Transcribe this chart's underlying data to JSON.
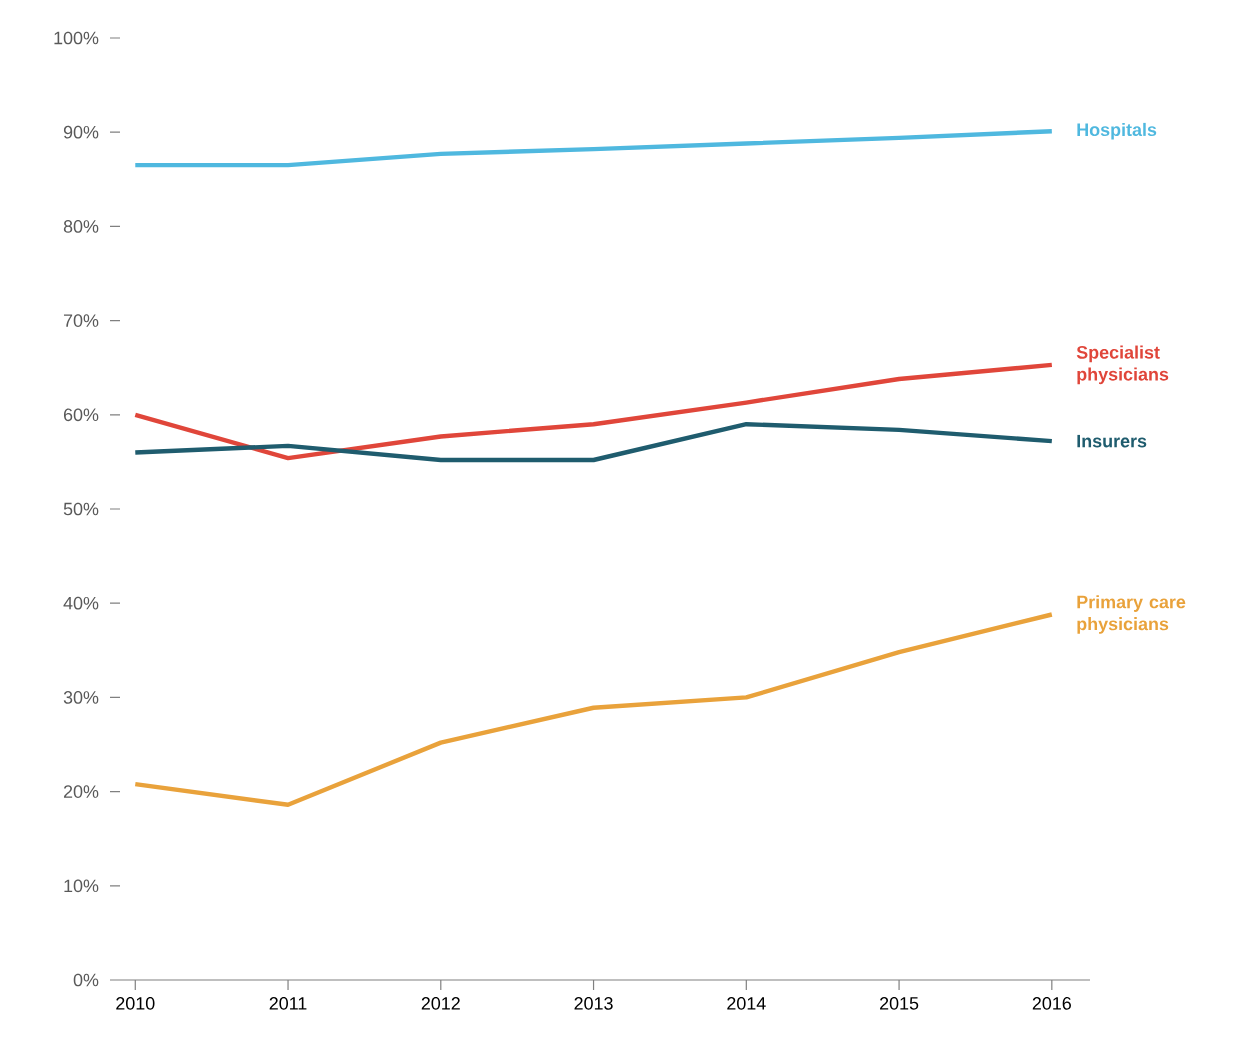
{
  "chart_data": {
    "type": "line",
    "categories": [
      "2010",
      "2011",
      "2012",
      "2013",
      "2014",
      "2015",
      "2016"
    ],
    "series": [
      {
        "name": "Hospitals",
        "color": "#4fb8df",
        "values": [
          86.5,
          86.5,
          87.7,
          88.2,
          88.8,
          89.4,
          90.1
        ]
      },
      {
        "name": "Specialist physicians",
        "color": "#e0463a",
        "values": [
          60,
          55.4,
          57.7,
          59,
          61.3,
          63.8,
          65.3
        ]
      },
      {
        "name": "Insurers",
        "color": "#1f5c6e",
        "values": [
          56,
          56.7,
          55.2,
          55.2,
          59,
          58.4,
          57.2
        ]
      },
      {
        "name": "Primary care physicians",
        "color": "#e9a23b",
        "values": [
          20.8,
          18.6,
          25.2,
          28.9,
          30,
          34.8,
          38.8
        ]
      }
    ],
    "ylim": [
      0,
      100
    ],
    "yticks": [
      {
        "value": 0,
        "label": "0%"
      },
      {
        "value": 10,
        "label": "10%"
      },
      {
        "value": 20,
        "label": "20%"
      },
      {
        "value": 30,
        "label": "30%"
      },
      {
        "value": 40,
        "label": "40%"
      },
      {
        "value": 50,
        "label": "50%"
      },
      {
        "value": 60,
        "label": "60%"
      },
      {
        "value": 70,
        "label": "70%"
      },
      {
        "value": 80,
        "label": "80%"
      },
      {
        "value": 90,
        "label": "90%"
      },
      {
        "value": 100,
        "label": "100%"
      }
    ],
    "grid": false,
    "legend": false,
    "marker": "none",
    "line_style": "solid"
  }
}
